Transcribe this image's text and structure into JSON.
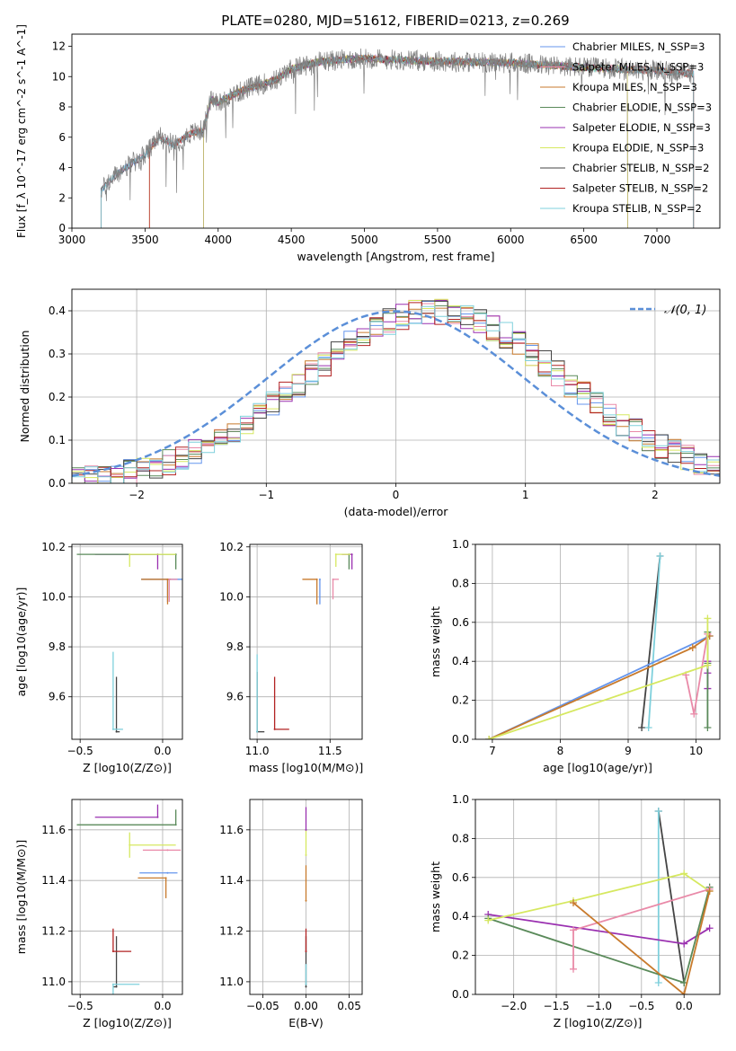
{
  "figure_title": "PLATE=0280, MJD=51612, FIBERID=0213, z=0.269",
  "chart_data": [
    {
      "type": "line",
      "title": "PLATE=0280, MJD=51612, FIBERID=0213, z=0.269",
      "xlabel": "wavelength [Angstrom, rest frame]",
      "ylabel": "Flux [f_λ 10^-17 erg cm^-2 s^-1 A^-1]",
      "xlim": [
        3000,
        7430
      ],
      "ylim": [
        0,
        12.8
      ],
      "xticks": [
        3000,
        3500,
        4000,
        4500,
        5000,
        5500,
        6000,
        6500,
        7000
      ],
      "yticks": [
        0,
        2,
        4,
        6,
        8,
        10,
        12
      ],
      "legend_position": "upper right",
      "series": [
        {
          "name": "Chabrier MILES, N_SSP=3",
          "color": "#6495ed",
          "start": 3200,
          "end": 7250
        },
        {
          "name": "Salpeter MILES, N_SSP=3",
          "color": "#e98aa8",
          "start": 3200,
          "end": 7250
        },
        {
          "name": "Kroupa MILES, N_SSP=3",
          "color": "#c87a2c",
          "start": 3530,
          "end": 7250
        },
        {
          "name": "Chabrier ELODIE, N_SSP=3",
          "color": "#5a8a5a",
          "start": 3900,
          "end": 6800
        },
        {
          "name": "Salpeter ELODIE, N_SSP=3",
          "color": "#9a30b0",
          "start": 3900,
          "end": 6800
        },
        {
          "name": "Kroupa ELODIE, N_SSP=3",
          "color": "#d6e860",
          "start": 3900,
          "end": 6800
        },
        {
          "name": "Chabrier STELIB, N_SSP=2",
          "color": "#444444",
          "start": 3200,
          "end": 7250
        },
        {
          "name": "Salpeter STELIB, N_SSP=2",
          "color": "#b22222",
          "start": 3530,
          "end": 7250
        },
        {
          "name": "Kroupa STELIB, N_SSP=2",
          "color": "#7fd0dc",
          "start": 3200,
          "end": 7250
        }
      ],
      "data_color": "#808080",
      "continuum_points": [
        [
          3200,
          2.5
        ],
        [
          3300,
          3.5
        ],
        [
          3400,
          4.2
        ],
        [
          3500,
          4.8
        ],
        [
          3600,
          6.0
        ],
        [
          3700,
          5.5
        ],
        [
          3800,
          6.2
        ],
        [
          3900,
          6.5
        ],
        [
          3950,
          8.5
        ],
        [
          4000,
          8.3
        ],
        [
          4100,
          8.8
        ],
        [
          4200,
          9.2
        ],
        [
          4300,
          9.5
        ],
        [
          4400,
          9.8
        ],
        [
          4500,
          10.5
        ],
        [
          4700,
          11.0
        ],
        [
          5000,
          11.2
        ],
        [
          5500,
          11.0
        ],
        [
          6000,
          10.9
        ],
        [
          6500,
          10.6
        ],
        [
          7000,
          10.4
        ],
        [
          7250,
          10.2
        ]
      ]
    },
    {
      "type": "histogram",
      "xlabel": "(data-model)/error",
      "ylabel": "Normed distribution",
      "xlim": [
        -2.5,
        2.5
      ],
      "ylim": [
        0,
        0.45
      ],
      "xticks": [
        -2,
        -1,
        0,
        1,
        2
      ],
      "yticks": [
        0.0,
        0.1,
        0.2,
        0.3,
        0.4
      ],
      "grid": true,
      "legend_position": "upper right",
      "reference_curve": {
        "label": "𝒩(0, 1)",
        "color": "#5b8fd8",
        "mean": 0,
        "sigma": 1
      },
      "bin_width": 0.1,
      "base_profile": [
        0.02,
        0.03,
        0.04,
        0.045,
        0.05,
        0.06,
        0.07,
        0.085,
        0.095,
        0.11,
        0.12,
        0.14,
        0.15,
        0.17,
        0.18,
        0.2,
        0.21,
        0.225,
        0.24,
        0.255,
        0.27,
        0.28,
        0.29,
        0.3,
        0.31,
        0.32,
        0.33,
        0.34,
        0.35,
        0.355,
        0.36,
        0.365,
        0.37,
        0.36,
        0.35,
        0.34,
        0.33,
        0.325,
        0.32,
        0.31,
        0.3,
        0.29,
        0.28,
        0.27,
        0.26,
        0.25,
        0.235,
        0.22,
        0.2,
        0.185,
        0.17,
        0.155,
        0.14,
        0.125,
        0.11,
        0.1,
        0.09,
        0.08,
        0.07,
        0.065,
        0.06,
        0.055,
        0.05,
        0.045,
        0.04,
        0.035,
        0.03
      ]
    },
    {
      "type": "scatter",
      "xlabel": "Z [log10(Z/Z⊙)]",
      "ylabel": "age  [log10(age/yr)]",
      "xlim": [
        -0.55,
        0.12
      ],
      "ylim": [
        9.43,
        10.21
      ],
      "xticks": [
        -0.5,
        0.0
      ],
      "yticks": [
        9.6,
        9.8,
        10.0,
        10.2
      ],
      "points": [
        {
          "c": "#444444",
          "x": -0.28,
          "y": 9.46,
          "xe": [
            -0.02,
            0.0
          ],
          "ye": [
            0.0,
            0.22
          ]
        },
        {
          "c": "#7fd0dc",
          "x": -0.3,
          "y": 9.47,
          "xe": [
            0.0,
            0.06
          ],
          "ye": [
            0.0,
            0.31
          ]
        },
        {
          "c": "#6495ed",
          "x": 0.03,
          "y": 10.07,
          "xe": [
            0.16,
            0.09
          ],
          "ye": [
            0.09,
            0.0
          ]
        },
        {
          "c": "#c87a2c",
          "x": 0.03,
          "y": 10.07,
          "xe": [
            0.16,
            0.02
          ],
          "ye": [
            0.1,
            0.0
          ]
        },
        {
          "c": "#e98aa8",
          "x": 0.04,
          "y": 10.07,
          "xe": [
            0.0,
            0.05
          ],
          "ye": [
            0.09,
            0.0
          ]
        },
        {
          "c": "#9a30b0",
          "x": -0.03,
          "y": 10.17,
          "xe": [
            0.38,
            0.0
          ],
          "ye": [
            0.06,
            0.0
          ]
        },
        {
          "c": "#5a8a5a",
          "x": 0.08,
          "y": 10.17,
          "xe": [
            0.6,
            0.0
          ],
          "ye": [
            0.06,
            0.0
          ]
        },
        {
          "c": "#d6e860",
          "x": -0.2,
          "y": 10.17,
          "xe": [
            0.0,
            0.28
          ],
          "ye": [
            0.05,
            0.0
          ]
        }
      ]
    },
    {
      "type": "scatter",
      "xlabel": "mass [log10(M/M⊙)]",
      "ylabel": "",
      "xlim": [
        10.95,
        11.72
      ],
      "ylim": [
        9.43,
        10.21
      ],
      "xticks": [
        11.0,
        11.5
      ],
      "yticks": [
        9.6,
        9.8,
        10.0,
        10.2
      ],
      "points": [
        {
          "c": "#444444",
          "x": 11.0,
          "y": 9.46,
          "xe": [
            0.0,
            0.05
          ],
          "ye": [
            0.0,
            0.24
          ]
        },
        {
          "c": "#7fd0dc",
          "x": 11.0,
          "y": 9.46,
          "xe": [
            0.0,
            0.0
          ],
          "ye": [
            0.0,
            0.31
          ]
        },
        {
          "c": "#b22222",
          "x": 11.12,
          "y": 9.47,
          "xe": [
            0.0,
            0.1
          ],
          "ye": [
            0.0,
            0.21
          ]
        },
        {
          "c": "#6495ed",
          "x": 11.43,
          "y": 10.07,
          "xe": [
            0.0,
            0.0
          ],
          "ye": [
            0.1,
            0.0
          ]
        },
        {
          "c": "#c87a2c",
          "x": 11.41,
          "y": 10.07,
          "xe": [
            0.1,
            0.0
          ],
          "ye": [
            0.1,
            0.0
          ]
        },
        {
          "c": "#e98aa8",
          "x": 11.52,
          "y": 10.07,
          "xe": [
            0.0,
            0.04
          ],
          "ye": [
            0.08,
            0.0
          ]
        },
        {
          "c": "#9a30b0",
          "x": 11.65,
          "y": 10.17,
          "xe": [
            0.07,
            0.0
          ],
          "ye": [
            0.06,
            0.0
          ]
        },
        {
          "c": "#5a8a5a",
          "x": 11.63,
          "y": 10.17,
          "xe": [
            0.0,
            0.0
          ],
          "ye": [
            0.06,
            0.0
          ]
        },
        {
          "c": "#d6e860",
          "x": 11.54,
          "y": 10.17,
          "xe": [
            0.0,
            0.1
          ],
          "ye": [
            0.05,
            0.0
          ]
        }
      ]
    },
    {
      "type": "line",
      "xlabel": "age  [log10(age/yr)]",
      "ylabel": "mass weight",
      "xlim": [
        6.75,
        10.35
      ],
      "ylim": [
        0,
        1.0
      ],
      "xticks": [
        7,
        8,
        9,
        10
      ],
      "yticks": [
        0.0,
        0.2,
        0.4,
        0.6,
        0.8,
        1.0
      ],
      "series": [
        {
          "c": "#444444",
          "x": [
            9.2,
            9.47
          ],
          "y": [
            0.06,
            0.94
          ]
        },
        {
          "c": "#7fd0dc",
          "x": [
            9.3,
            9.47
          ],
          "y": [
            0.06,
            0.94
          ]
        },
        {
          "c": "#6495ed",
          "x": [
            6.95,
            10.2
          ],
          "y": [
            0.0,
            0.53
          ]
        },
        {
          "c": "#c87a2c",
          "x": [
            6.95,
            9.95,
            10.2
          ],
          "y": [
            0.0,
            0.47,
            0.53
          ]
        },
        {
          "c": "#e98aa8",
          "x": [
            9.85,
            9.97,
            10.17
          ],
          "y": [
            0.33,
            0.13,
            0.54
          ]
        },
        {
          "c": "#9a30b0",
          "x": [
            10.17,
            10.17,
            10.17
          ],
          "y": [
            0.26,
            0.34,
            0.4
          ]
        },
        {
          "c": "#5a8a5a",
          "x": [
            10.17,
            10.17,
            10.17
          ],
          "y": [
            0.06,
            0.39,
            0.55
          ]
        },
        {
          "c": "#d6e860",
          "x": [
            6.95,
            10.17,
            10.17
          ],
          "y": [
            0.0,
            0.38,
            0.62
          ]
        }
      ]
    },
    {
      "type": "scatter",
      "xlabel": "Z [log10(Z/Z⊙)]",
      "ylabel": "mass [log10(M/M⊙)]",
      "xlim": [
        -0.55,
        0.12
      ],
      "ylim": [
        10.95,
        11.72
      ],
      "xticks": [
        -0.5,
        0.0
      ],
      "yticks": [
        11.0,
        11.2,
        11.4,
        11.6
      ],
      "points": [
        {
          "c": "#444444",
          "x": -0.28,
          "y": 10.98,
          "xe": [
            0.02,
            0.0
          ],
          "ye": [
            0.0,
            0.2
          ]
        },
        {
          "c": "#7fd0dc",
          "x": -0.3,
          "y": 10.99,
          "xe": [
            0.0,
            0.16
          ],
          "ye": [
            0.07,
            0.0
          ]
        },
        {
          "c": "#b22222",
          "x": -0.3,
          "y": 11.12,
          "xe": [
            0.0,
            0.11
          ],
          "ye": [
            0.0,
            0.09
          ]
        },
        {
          "c": "#6495ed",
          "x": 0.03,
          "y": 11.43,
          "xe": [
            0.17,
            0.06
          ],
          "ye": [
            0.0,
            0.0
          ]
        },
        {
          "c": "#c87a2c",
          "x": 0.02,
          "y": 11.41,
          "xe": [
            0.17,
            0.0
          ],
          "ye": [
            0.08,
            0.0
          ]
        },
        {
          "c": "#e98aa8",
          "x": 0.03,
          "y": 11.52,
          "xe": [
            0.15,
            0.08
          ],
          "ye": [
            0.0,
            0.0
          ]
        },
        {
          "c": "#9a30b0",
          "x": -0.03,
          "y": 11.65,
          "xe": [
            0.38,
            0.0
          ],
          "ye": [
            0.0,
            0.05
          ]
        },
        {
          "c": "#5a8a5a",
          "x": 0.08,
          "y": 11.62,
          "xe": [
            0.6,
            0.0
          ],
          "ye": [
            0.0,
            0.06
          ]
        },
        {
          "c": "#d6e860",
          "x": -0.2,
          "y": 11.54,
          "xe": [
            0.0,
            0.28
          ],
          "ye": [
            0.05,
            0.05
          ]
        }
      ]
    },
    {
      "type": "scatter",
      "xlabel": "E(B-V)",
      "ylabel": "",
      "xlim": [
        -0.065,
        0.065
      ],
      "ylim": [
        10.95,
        11.72
      ],
      "xticks": [
        -0.05,
        0.0,
        0.05
      ],
      "yticks": [
        11.0,
        11.2,
        11.4,
        11.6
      ],
      "points": [
        {
          "c": "#444444",
          "x": 0.0,
          "y": 10.98,
          "ye": [
            0.0,
            0.2
          ]
        },
        {
          "c": "#7fd0dc",
          "x": 0.0,
          "y": 10.99,
          "ye": [
            0.0,
            0.08
          ]
        },
        {
          "c": "#b22222",
          "x": 0.0,
          "y": 11.12,
          "ye": [
            0.0,
            0.09
          ]
        },
        {
          "c": "#c87a2c",
          "x": 0.0,
          "y": 11.32,
          "ye": [
            0.0,
            0.14
          ]
        },
        {
          "c": "#d6e860",
          "x": 0.0,
          "y": 11.5,
          "ye": [
            0.0,
            0.1
          ]
        },
        {
          "c": "#9a30b0",
          "x": 0.0,
          "y": 11.6,
          "ye": [
            0.0,
            0.09
          ]
        }
      ]
    },
    {
      "type": "line",
      "xlabel": "Z [log10(Z/Z⊙)]",
      "ylabel": "mass weight",
      "xlim": [
        -2.45,
        0.42
      ],
      "ylim": [
        0,
        1.0
      ],
      "xticks": [
        -2.0,
        -1.5,
        -1.0,
        -0.5,
        0.0
      ],
      "yticks": [
        0.0,
        0.2,
        0.4,
        0.6,
        0.8,
        1.0
      ],
      "series": [
        {
          "c": "#444444",
          "x": [
            -0.3,
            0.0
          ],
          "y": [
            0.94,
            0.06
          ]
        },
        {
          "c": "#7fd0dc",
          "x": [
            -0.3,
            -0.3
          ],
          "y": [
            0.06,
            0.94
          ]
        },
        {
          "c": "#9a30b0",
          "x": [
            -2.3,
            0.0,
            0.3
          ],
          "y": [
            0.41,
            0.26,
            0.34
          ]
        },
        {
          "c": "#5a8a5a",
          "x": [
            -2.3,
            0.0,
            0.3
          ],
          "y": [
            0.39,
            0.06,
            0.55
          ]
        },
        {
          "c": "#d6e860",
          "x": [
            -2.3,
            -1.3,
            0.0,
            0.3
          ],
          "y": [
            0.38,
            0.48,
            0.62,
            0.53
          ]
        },
        {
          "c": "#e98aa8",
          "x": [
            -1.3,
            -1.3,
            0.3
          ],
          "y": [
            0.13,
            0.33,
            0.54
          ]
        },
        {
          "c": "#c87a2c",
          "x": [
            -1.3,
            0.0,
            0.3
          ],
          "y": [
            0.47,
            0.0,
            0.53
          ]
        }
      ]
    }
  ]
}
